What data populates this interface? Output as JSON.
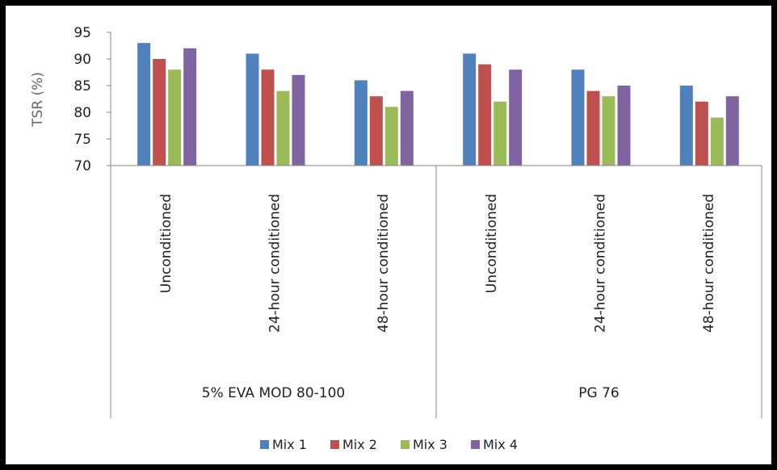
{
  "chart_data": {
    "type": "bar",
    "title": "",
    "ylabel": "TSR (%)",
    "xlabel": "",
    "ylim": [
      70,
      95
    ],
    "yticks": [
      70,
      75,
      80,
      85,
      90,
      95
    ],
    "grid": false,
    "legend_position": "bottom",
    "groups": [
      {
        "label": "5% EVA MOD 80-100",
        "categories": [
          "Unconditioned",
          "24-hour conditioned",
          "48-hour conditioned"
        ]
      },
      {
        "label": "PG 76",
        "categories": [
          "Unconditioned",
          "24-hour conditioned",
          "48-hour conditioned"
        ]
      }
    ],
    "series": [
      {
        "name": "Mix 1",
        "color": "#4F81BD",
        "values": [
          93,
          91,
          86,
          91,
          88,
          85
        ]
      },
      {
        "name": "Mix 2",
        "color": "#C0504D",
        "values": [
          90,
          88,
          83,
          89,
          84,
          82
        ]
      },
      {
        "name": "Mix 3",
        "color": "#9BBB59",
        "values": [
          88,
          84,
          81,
          82,
          83,
          79
        ]
      },
      {
        "name": "Mix 4",
        "color": "#8064A2",
        "values": [
          92,
          87,
          84,
          88,
          85,
          83
        ]
      }
    ]
  }
}
